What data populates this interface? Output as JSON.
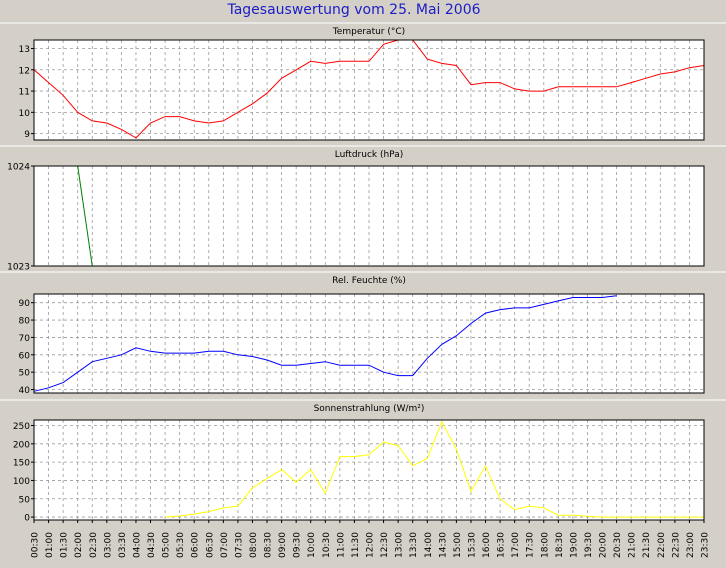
{
  "title": "Tagesauswertung vom 25. Mai 2006",
  "colors": {
    "background": "#d4d0c8",
    "plot_background": "#ffffff",
    "title": "#1c1cc8",
    "grid": "#9a9a9a",
    "axis_text": "#000000"
  },
  "x_ticks": [
    "00:30",
    "01:00",
    "01:30",
    "02:00",
    "02:30",
    "03:00",
    "03:30",
    "04:00",
    "04:30",
    "05:00",
    "05:30",
    "06:00",
    "06:30",
    "07:00",
    "07:30",
    "08:00",
    "08:30",
    "09:00",
    "09:30",
    "10:00",
    "10:30",
    "11:00",
    "11:30",
    "12:00",
    "12:30",
    "13:00",
    "13:30",
    "14:00",
    "14:30",
    "15:00",
    "15:30",
    "16:00",
    "16:30",
    "17:00",
    "17:30",
    "18:00",
    "18:30",
    "19:00",
    "19:30",
    "20:00",
    "20:30",
    "21:00",
    "21:30",
    "22:00",
    "22:30",
    "23:00",
    "23:30"
  ],
  "chart_data": [
    {
      "type": "line",
      "title": "Temperatur (°C)",
      "color": "#ff0000",
      "ylim": [
        8.7,
        13.4
      ],
      "yticks": [
        "9",
        "10",
        "11",
        "12",
        "13"
      ],
      "ytick_values": [
        9,
        10,
        11,
        12,
        13
      ],
      "x": [
        "00:30",
        "01:00",
        "01:30",
        "02:00",
        "02:30",
        "03:00",
        "03:30",
        "04:00",
        "04:30",
        "05:00",
        "05:30",
        "06:00",
        "06:30",
        "07:00",
        "07:30",
        "08:00",
        "08:30",
        "09:00",
        "09:30",
        "10:00",
        "10:30",
        "11:00",
        "11:30",
        "12:00",
        "12:30",
        "13:00",
        "13:30",
        "14:00",
        "14:30",
        "15:00",
        "15:30",
        "16:00",
        "16:30",
        "17:00",
        "17:30",
        "18:00",
        "18:30",
        "19:00",
        "19:30",
        "20:00",
        "20:30",
        "21:00",
        "21:30",
        "22:00",
        "22:30",
        "23:00",
        "23:30"
      ],
      "values": [
        12.0,
        11.4,
        10.8,
        10.0,
        9.6,
        9.5,
        9.2,
        8.8,
        9.5,
        9.8,
        9.8,
        9.6,
        9.5,
        9.6,
        10.0,
        10.4,
        10.9,
        11.6,
        12.0,
        12.4,
        12.3,
        12.4,
        12.4,
        12.4,
        13.2,
        13.4,
        13.4,
        12.5,
        12.3,
        12.2,
        11.3,
        11.4,
        11.4,
        11.1,
        11.0,
        11.0,
        11.2,
        11.2,
        11.2,
        11.2,
        11.2,
        11.4,
        11.6,
        11.8,
        11.9,
        12.1,
        12.2
      ],
      "grid": true
    },
    {
      "type": "line",
      "title": "Luftdruck (hPa)",
      "color": "#008000",
      "ylim": [
        1023,
        1024
      ],
      "yticks": [
        "1023",
        "1024"
      ],
      "ytick_values": [
        1023,
        1024
      ],
      "x": [
        "02:00",
        "02:30"
      ],
      "values": [
        1024.0,
        1023.0
      ],
      "grid": true
    },
    {
      "type": "line",
      "title": "Rel. Feuchte (%)",
      "color": "#0000ff",
      "ylim": [
        38,
        95
      ],
      "yticks": [
        "40",
        "50",
        "60",
        "70",
        "80",
        "90"
      ],
      "ytick_values": [
        40,
        50,
        60,
        70,
        80,
        90
      ],
      "x": [
        "00:30",
        "01:00",
        "01:30",
        "02:00",
        "02:30",
        "03:00",
        "03:30",
        "04:00",
        "04:30",
        "05:00",
        "05:30",
        "06:00",
        "06:30",
        "07:00",
        "07:30",
        "08:00",
        "08:30",
        "09:00",
        "09:30",
        "10:00",
        "10:30",
        "11:00",
        "11:30",
        "12:00",
        "12:30",
        "13:00",
        "13:30",
        "14:00",
        "14:30",
        "15:00",
        "15:30",
        "16:00",
        "16:30",
        "17:00",
        "17:30",
        "18:00",
        "18:30",
        "19:00",
        "19:30",
        "20:00",
        "20:30"
      ],
      "values": [
        39,
        41,
        44,
        50,
        56,
        58,
        60,
        64,
        62,
        61,
        61,
        61,
        62,
        62,
        60,
        59,
        57,
        54,
        54,
        55,
        56,
        54,
        54,
        54,
        50,
        48,
        48,
        58,
        66,
        71,
        78,
        84,
        86,
        87,
        87,
        89,
        91,
        93,
        93,
        93,
        94
      ],
      "grid": true
    },
    {
      "type": "line",
      "title": "Sonnenstrahlung (W/m²)",
      "color": "#ffff00",
      "ylim": [
        -8,
        265
      ],
      "yticks": [
        "0",
        "50",
        "100",
        "150",
        "200",
        "250"
      ],
      "ytick_values": [
        0,
        50,
        100,
        150,
        200,
        250
      ],
      "x": [
        "05:00",
        "05:30",
        "06:00",
        "06:30",
        "07:00",
        "07:30",
        "08:00",
        "08:30",
        "09:00",
        "09:30",
        "10:00",
        "10:30",
        "11:00",
        "11:30",
        "12:00",
        "12:30",
        "13:00",
        "13:30",
        "14:00",
        "14:30",
        "15:00",
        "15:30",
        "16:00",
        "16:30",
        "17:00",
        "17:30",
        "18:00",
        "18:30",
        "19:00",
        "19:30",
        "20:00",
        "20:30",
        "21:00",
        "21:30",
        "22:00",
        "22:30",
        "23:00",
        "23:30"
      ],
      "values": [
        0,
        3,
        8,
        15,
        25,
        30,
        80,
        105,
        130,
        95,
        130,
        65,
        165,
        165,
        170,
        205,
        195,
        140,
        160,
        260,
        185,
        70,
        140,
        50,
        20,
        30,
        25,
        5,
        5,
        2,
        0,
        0,
        0,
        0,
        0,
        0,
        0,
        0
      ],
      "grid": true
    }
  ]
}
